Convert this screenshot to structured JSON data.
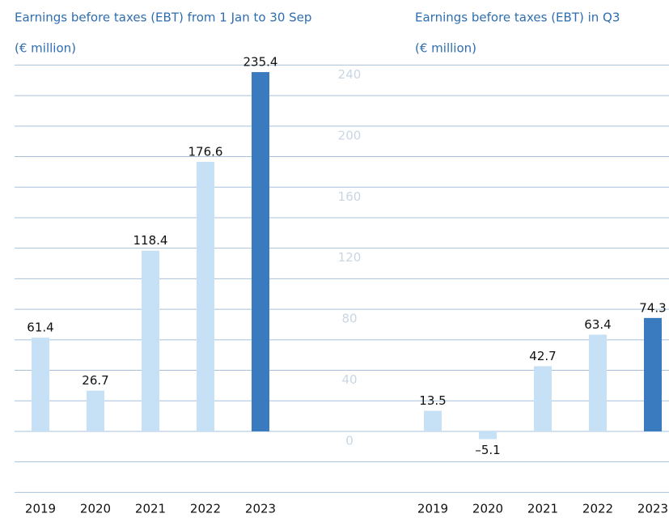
{
  "chart_data": [
    {
      "type": "bar",
      "title": "Earnings before taxes (EBT) from 1 Jan to 30 Sep",
      "subtitle": "(€ million)",
      "categories": [
        "2019",
        "2020",
        "2021",
        "2022",
        "2023"
      ],
      "values": [
        61.4,
        26.7,
        118.4,
        176.6,
        235.4
      ],
      "colors": [
        "#c6e1f5",
        "#c6e1f5",
        "#c6e1f5",
        "#c6e1f5",
        "#3a7bc0"
      ],
      "ylim": [
        -40,
        240
      ],
      "yticks": [
        0,
        40,
        80,
        120,
        160,
        200,
        240
      ],
      "minor_yticks": [
        -40,
        -20,
        0,
        20,
        40,
        60,
        80,
        100,
        120,
        140,
        160,
        180,
        200,
        220,
        240
      ],
      "grid": true
    },
    {
      "type": "bar",
      "title": "Earnings before taxes (EBT) in Q3",
      "subtitle": "(€ million)",
      "categories": [
        "2019",
        "2020",
        "2021",
        "2022",
        "2023"
      ],
      "values": [
        13.5,
        -5.1,
        42.7,
        63.4,
        74.3
      ],
      "value_labels": [
        "13.5",
        "–5.1",
        "42.7",
        "63.4",
        "74.3"
      ],
      "colors": [
        "#c6e1f5",
        "#c6e1f5",
        "#c6e1f5",
        "#c6e1f5",
        "#3a7bc0"
      ],
      "ylim": [
        -40,
        240
      ],
      "minor_yticks": [
        -40,
        -20,
        0,
        20,
        40,
        60,
        80,
        100,
        120,
        140,
        160,
        180,
        200,
        220,
        240
      ],
      "grid": true
    }
  ]
}
